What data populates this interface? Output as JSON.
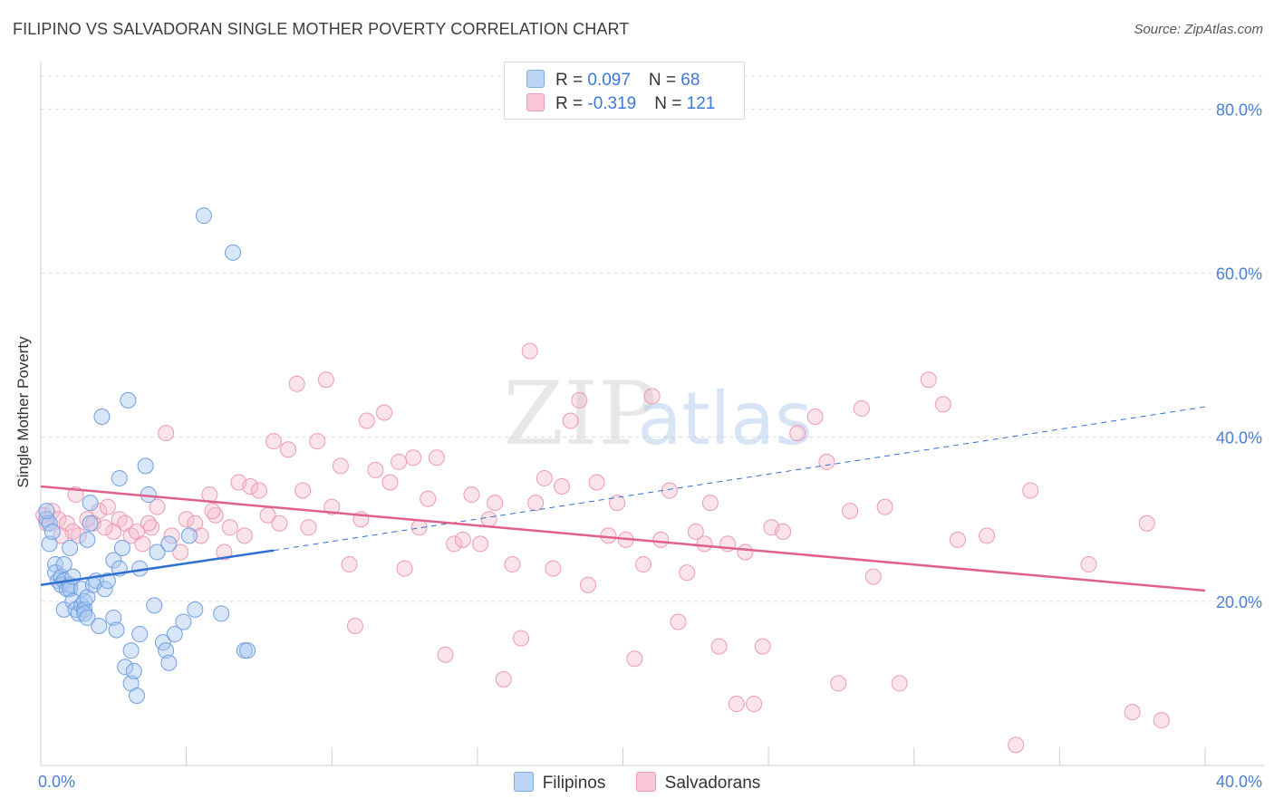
{
  "title": "FILIPINO VS SALVADORAN SINGLE MOTHER POVERTY CORRELATION CHART",
  "source": "Source: ZipAtlas.com",
  "watermark": {
    "part1": "ZIP",
    "part2": "atlas"
  },
  "legend": {
    "rows": [
      {
        "r_label": "R = ",
        "r_value": "0.097",
        "n_label": "N = ",
        "n_value": "68",
        "color": "#a8c8f0"
      },
      {
        "r_label": "R = ",
        "r_value": "-0.319",
        "n_label": "N = ",
        "n_value": "121",
        "color": "#f6b8cb"
      }
    ],
    "bottom": [
      "Filipinos",
      "Salvadorans"
    ]
  },
  "chart_data": {
    "type": "scatter",
    "title": "FILIPINO VS SALVADORAN SINGLE MOTHER POVERTY CORRELATION CHART",
    "xlabel": "",
    "ylabel": "Single Mother Poverty",
    "xlim": [
      0,
      40
    ],
    "ylim": [
      0,
      85
    ],
    "x_tick_labels": [
      "0.0%",
      "40.0%"
    ],
    "y_ticks": [
      20,
      40,
      60,
      80
    ],
    "y_tick_labels": [
      "20.0%",
      "40.0%",
      "60.0%",
      "80.0%"
    ],
    "grid": "horizontal dashed",
    "colors": {
      "Filipinos": "#4a86d8",
      "Salvadorans": "#e0608c"
    },
    "series": [
      {
        "name": "Filipinos",
        "points": [
          [
            0.2,
            30.0
          ],
          [
            0.3,
            29.5
          ],
          [
            0.3,
            27.0
          ],
          [
            0.5,
            24.5
          ],
          [
            0.5,
            23.5
          ],
          [
            0.6,
            22.5
          ],
          [
            0.7,
            23.0
          ],
          [
            0.7,
            22.0
          ],
          [
            0.8,
            24.5
          ],
          [
            0.8,
            22.5
          ],
          [
            0.9,
            21.5
          ],
          [
            0.8,
            19.0
          ],
          [
            1.0,
            22.0
          ],
          [
            1.0,
            21.5
          ],
          [
            1.1,
            20.0
          ],
          [
            1.1,
            23.0
          ],
          [
            1.0,
            26.5
          ],
          [
            1.2,
            19.0
          ],
          [
            1.3,
            18.5
          ],
          [
            1.4,
            19.5
          ],
          [
            1.4,
            21.5
          ],
          [
            1.5,
            20.0
          ],
          [
            1.5,
            19.0
          ],
          [
            1.5,
            18.5
          ],
          [
            1.6,
            18.0
          ],
          [
            1.6,
            20.5
          ],
          [
            1.6,
            27.5
          ],
          [
            1.7,
            29.5
          ],
          [
            1.7,
            32.0
          ],
          [
            1.8,
            22.0
          ],
          [
            1.9,
            22.5
          ],
          [
            2.0,
            17.0
          ],
          [
            2.1,
            42.5
          ],
          [
            2.2,
            21.5
          ],
          [
            2.3,
            22.5
          ],
          [
            2.5,
            18.0
          ],
          [
            2.5,
            25.0
          ],
          [
            2.6,
            16.5
          ],
          [
            2.7,
            35.0
          ],
          [
            2.7,
            24.0
          ],
          [
            2.8,
            26.5
          ],
          [
            2.9,
            12.0
          ],
          [
            3.0,
            44.5
          ],
          [
            3.1,
            10.0
          ],
          [
            3.1,
            14.0
          ],
          [
            3.2,
            11.5
          ],
          [
            3.3,
            8.5
          ],
          [
            3.4,
            16.0
          ],
          [
            3.4,
            24.0
          ],
          [
            3.6,
            36.5
          ],
          [
            3.7,
            33.0
          ],
          [
            3.9,
            19.5
          ],
          [
            4.0,
            26.0
          ],
          [
            4.2,
            15.0
          ],
          [
            4.3,
            14.0
          ],
          [
            4.4,
            12.5
          ],
          [
            4.4,
            27.0
          ],
          [
            4.6,
            16.0
          ],
          [
            4.9,
            17.5
          ],
          [
            5.1,
            28.0
          ],
          [
            5.3,
            19.0
          ],
          [
            5.6,
            67.0
          ],
          [
            6.2,
            18.5
          ],
          [
            6.6,
            62.5
          ],
          [
            7.0,
            14.0
          ],
          [
            7.1,
            14.0
          ],
          [
            0.2,
            31.0
          ],
          [
            0.4,
            28.5
          ]
        ]
      },
      {
        "name": "Salvadorans",
        "points": [
          [
            0.1,
            30.5
          ],
          [
            0.2,
            29.5
          ],
          [
            0.4,
            31.0
          ],
          [
            0.6,
            30.0
          ],
          [
            0.9,
            29.5
          ],
          [
            1.1,
            28.5
          ],
          [
            1.3,
            28.0
          ],
          [
            1.6,
            30.0
          ],
          [
            1.8,
            29.5
          ],
          [
            2.0,
            31.0
          ],
          [
            2.3,
            31.5
          ],
          [
            2.5,
            28.5
          ],
          [
            2.7,
            30.0
          ],
          [
            2.9,
            29.5
          ],
          [
            3.1,
            28.0
          ],
          [
            3.3,
            28.5
          ],
          [
            3.5,
            27.0
          ],
          [
            3.8,
            29.0
          ],
          [
            4.0,
            31.5
          ],
          [
            4.3,
            40.5
          ],
          [
            4.5,
            28.0
          ],
          [
            4.8,
            26.0
          ],
          [
            5.0,
            30.0
          ],
          [
            5.3,
            29.5
          ],
          [
            5.5,
            28.0
          ],
          [
            5.8,
            33.0
          ],
          [
            6.0,
            30.5
          ],
          [
            6.3,
            26.0
          ],
          [
            6.5,
            29.0
          ],
          [
            6.8,
            34.5
          ],
          [
            7.0,
            28.0
          ],
          [
            7.2,
            34.0
          ],
          [
            7.5,
            33.5
          ],
          [
            7.8,
            30.5
          ],
          [
            8.0,
            39.5
          ],
          [
            8.2,
            29.5
          ],
          [
            8.5,
            38.5
          ],
          [
            8.8,
            46.5
          ],
          [
            9.0,
            33.5
          ],
          [
            9.2,
            29.0
          ],
          [
            9.5,
            39.5
          ],
          [
            9.8,
            47.0
          ],
          [
            10.0,
            31.5
          ],
          [
            10.3,
            36.5
          ],
          [
            10.6,
            24.5
          ],
          [
            10.8,
            17.0
          ],
          [
            11.0,
            30.0
          ],
          [
            11.2,
            42.0
          ],
          [
            11.5,
            36.0
          ],
          [
            11.8,
            43.0
          ],
          [
            12.0,
            34.5
          ],
          [
            12.3,
            37.0
          ],
          [
            12.5,
            24.0
          ],
          [
            12.8,
            37.5
          ],
          [
            13.0,
            29.0
          ],
          [
            13.3,
            32.5
          ],
          [
            13.6,
            37.5
          ],
          [
            13.9,
            13.5
          ],
          [
            14.2,
            27.0
          ],
          [
            14.5,
            27.5
          ],
          [
            14.8,
            33.0
          ],
          [
            15.1,
            27.0
          ],
          [
            15.4,
            30.0
          ],
          [
            15.6,
            32.0
          ],
          [
            15.9,
            10.5
          ],
          [
            16.2,
            24.5
          ],
          [
            16.5,
            15.5
          ],
          [
            16.8,
            50.5
          ],
          [
            17.0,
            32.0
          ],
          [
            17.3,
            35.0
          ],
          [
            17.6,
            24.0
          ],
          [
            17.9,
            34.0
          ],
          [
            18.2,
            42.0
          ],
          [
            18.5,
            44.5
          ],
          [
            18.8,
            22.0
          ],
          [
            19.1,
            34.5
          ],
          [
            19.5,
            28.0
          ],
          [
            19.8,
            32.0
          ],
          [
            20.1,
            27.5
          ],
          [
            20.4,
            13.0
          ],
          [
            20.7,
            24.5
          ],
          [
            21.0,
            45.0
          ],
          [
            21.3,
            27.5
          ],
          [
            21.6,
            33.5
          ],
          [
            21.9,
            17.5
          ],
          [
            22.2,
            23.5
          ],
          [
            22.5,
            28.5
          ],
          [
            22.8,
            27.0
          ],
          [
            23.0,
            32.0
          ],
          [
            23.3,
            14.5
          ],
          [
            23.6,
            27.0
          ],
          [
            23.9,
            7.5
          ],
          [
            24.2,
            26.0
          ],
          [
            24.5,
            7.5
          ],
          [
            24.8,
            14.5
          ],
          [
            25.1,
            29.0
          ],
          [
            26.0,
            40.5
          ],
          [
            26.6,
            42.5
          ],
          [
            27.0,
            37.0
          ],
          [
            27.4,
            10.0
          ],
          [
            27.8,
            31.0
          ],
          [
            28.2,
            43.5
          ],
          [
            28.6,
            23.0
          ],
          [
            29.0,
            31.5
          ],
          [
            29.5,
            10.0
          ],
          [
            30.5,
            47.0
          ],
          [
            31.0,
            44.0
          ],
          [
            31.5,
            27.5
          ],
          [
            32.5,
            28.0
          ],
          [
            34.0,
            33.5
          ],
          [
            33.5,
            2.5
          ],
          [
            36.0,
            24.5
          ],
          [
            37.5,
            6.5
          ],
          [
            38.0,
            29.5
          ],
          [
            38.5,
            5.5
          ],
          [
            25.5,
            28.5
          ],
          [
            5.9,
            31.0
          ],
          [
            3.7,
            29.5
          ],
          [
            2.2,
            29.0
          ],
          [
            1.2,
            33.0
          ],
          [
            0.7,
            28.0
          ]
        ]
      }
    ],
    "trendlines": [
      {
        "series": "Filipinos",
        "x0": 0,
        "y0": 22.0,
        "x1": 8.0,
        "y1": 26.2,
        "dashed_to_x": 40,
        "dashed_to_y": 43.7
      },
      {
        "series": "Salvadorans",
        "x0": 0,
        "y0": 34.0,
        "x1": 40,
        "y1": 21.3
      }
    ]
  }
}
